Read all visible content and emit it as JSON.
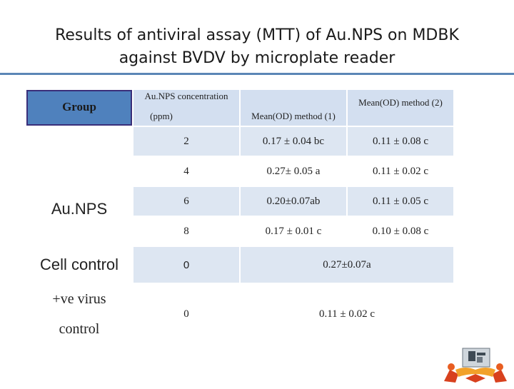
{
  "slide": {
    "title_line1": "Results of antiviral assay (MTT) of Au.NPS on MDBK",
    "title_line2": "against BVDV by microplate reader"
  },
  "table": {
    "headers": {
      "group": "Group",
      "concentration_line1": "Au.NPS concentration",
      "concentration_line2": "(ppm)",
      "method1": "Mean(OD) method (1)",
      "method2": "Mean(OD) method (2)"
    },
    "groups": {
      "aunps": "Au.NPS",
      "cell_control": "Cell control",
      "virus_control_line1": "+ve virus",
      "virus_control_line2": "control"
    },
    "rows": [
      {
        "conc": "2",
        "m1": "0.17 ± 0.04 bc",
        "m2": "0.11 ± 0.08 c"
      },
      {
        "conc": "4",
        "m1": "0.27± 0.05 a",
        "m2": "0.11 ± 0.02 c"
      },
      {
        "conc": "6",
        "m1": "0.20±0.07ab",
        "m2": "0.11 ± 0.05 c"
      },
      {
        "conc": "8",
        "m1": "0.17 ± 0.01 c",
        "m2": "0.10 ± 0.08 c"
      }
    ],
    "cell_control": {
      "conc": "0",
      "value": "0.27±0.07a"
    },
    "virus_control": {
      "conc": "0",
      "value": "0.11 ± 0.02 c"
    },
    "highlight_color": "#1f7a2f"
  },
  "logo": {
    "icon": "university-emblem-icon"
  }
}
